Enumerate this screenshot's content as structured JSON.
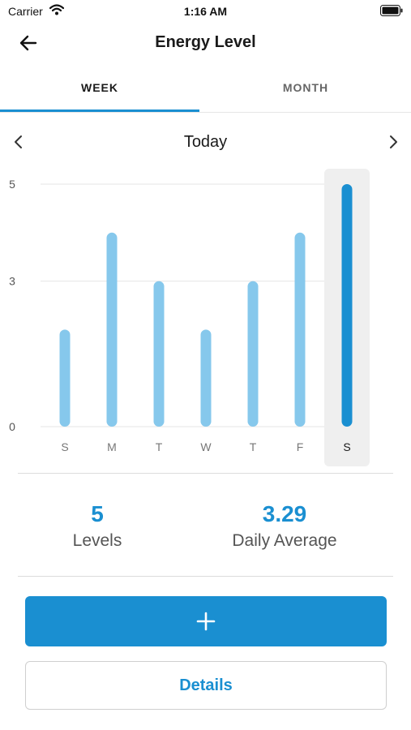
{
  "status_bar": {
    "carrier": "Carrier",
    "time": "1:16 AM"
  },
  "header": {
    "title": "Energy Level"
  },
  "tabs": [
    {
      "label": "WEEK",
      "active": true
    },
    {
      "label": "MONTH",
      "active": false
    }
  ],
  "date_nav": {
    "label": "Today"
  },
  "chart_data": {
    "type": "bar",
    "categories": [
      "S",
      "M",
      "T",
      "W",
      "T",
      "F",
      "S"
    ],
    "values": [
      2,
      4,
      3,
      2,
      3,
      4,
      5
    ],
    "selected_index": 6,
    "y_ticks": [
      "0",
      "3",
      "5"
    ],
    "ylim": [
      0,
      5
    ],
    "grid": true,
    "colors": {
      "bar": "#86c8ec",
      "selected_bar": "#1a8fd1",
      "highlight_bg": "#efefef"
    }
  },
  "stats": {
    "levels_value": "5",
    "levels_label": "Levels",
    "average_value": "3.29",
    "average_label": "Daily Average"
  },
  "buttons": {
    "add_icon": "plus-icon",
    "details_label": "Details"
  },
  "colors": {
    "accent": "#1a8fd1"
  }
}
